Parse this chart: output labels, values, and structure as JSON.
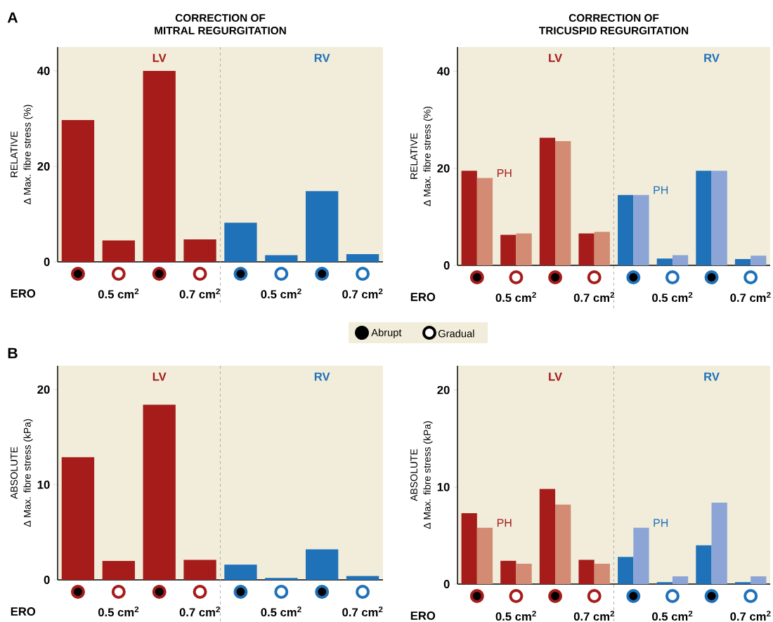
{
  "chart_data": [
    {
      "type": "bar",
      "title": "CORRECTION OF MITRAL REGURGITATION",
      "ylabel": "Δ Max. fibre stress (%)",
      "categories": [
        null,
        null,
        null,
        null,
        null,
        null,
        null,
        null
      ],
      "series": [
        {
          "colors": [
            "#a51c1b",
            "#a51c1b",
            "#a51c1b",
            "#a51c1b",
            "#1f71b8",
            "#1f71b8",
            "#1f71b8",
            "#1f71b8"
          ],
          "values": [
            29.7,
            4.5,
            40.0,
            4.7,
            8.2,
            1.4,
            14.8,
            1.6
          ]
        }
      ],
      "ylim": [
        0,
        45
      ],
      "yticks": [
        0,
        20,
        40
      ],
      "annotations": [
        "RELATIVE",
        "LV",
        "RV",
        "ERO",
        "0.5 cm$^{2}$",
        "0.7 cm$^{2}$",
        "0.5 cm$^{2}$",
        "0.7 cm$^{2}$",
        "A",
        "Abrupt",
        "Gradual"
      ]
    },
    {
      "type": "bar",
      "title": "CORRECTION OF TRICUSPID REGURGITATION",
      "ylabel": "Δ Max. fibre stress (%)",
      "categories": [
        null,
        null,
        null,
        null,
        null,
        null,
        null,
        null
      ],
      "series": [
        {
          "colors": [
            "#a51c1b",
            "#a51c1b",
            "#a51c1b",
            "#a51c1b",
            "#1f71b8",
            "#1f71b8",
            "#1f71b8",
            "#1f71b8"
          ],
          "values": [
            19.5,
            6.3,
            26.3,
            6.6,
            14.5,
            1.4,
            19.5,
            1.3
          ]
        },
        {
          "colors": [
            "#d38b74",
            "#d38b74",
            "#d38b74",
            "#d38b74",
            "#8ca5d6",
            "#8ca5d6",
            "#8ca5d6",
            "#8ca5d6"
          ],
          "values": [
            18.0,
            6.6,
            25.6,
            6.9,
            14.5,
            2.1,
            19.5,
            2.0
          ]
        }
      ],
      "ylim": [
        0,
        45
      ],
      "yticks": [
        0,
        20,
        40
      ],
      "annotations": [
        "RELATIVE",
        "LV",
        "RV",
        "ERO",
        "0.5 cm$^{2}$",
        "0.7 cm$^{2}$",
        "0.5 cm$^{2}$",
        "0.7 cm$^{2}$",
        "PH",
        "PH"
      ]
    },
    {
      "type": "bar",
      "ylabel": "Δ Max. fibre stress (kPa)",
      "categories": [
        null,
        null,
        null,
        null,
        null,
        null,
        null,
        null
      ],
      "series": [
        {
          "colors": [
            "#a51c1b",
            "#a51c1b",
            "#a51c1b",
            "#a51c1b",
            "#1f71b8",
            "#1f71b8",
            "#1f71b8",
            "#1f71b8"
          ],
          "values": [
            12.9,
            2.0,
            18.4,
            2.1,
            1.6,
            0.2,
            3.2,
            0.4
          ]
        }
      ],
      "ylim": [
        0,
        22.5
      ],
      "yticks": [
        0,
        10,
        20
      ],
      "annotations": [
        "ABSOLUTE",
        "LV",
        "RV",
        "ERO",
        "0.5 cm$^{2}$",
        "0.7 cm$^{2}$",
        "0.5 cm$^{2}$",
        "0.7 cm$^{2}$",
        "B"
      ]
    },
    {
      "type": "bar",
      "ylabel": "Δ Max. fibre stress (kPa)",
      "categories": [
        null,
        null,
        null,
        null,
        null,
        null,
        null,
        null
      ],
      "series": [
        {
          "colors": [
            "#a51c1b",
            "#a51c1b",
            "#a51c1b",
            "#a51c1b",
            "#1f71b8",
            "#1f71b8",
            "#1f71b8",
            "#1f71b8"
          ],
          "values": [
            7.3,
            2.4,
            9.8,
            2.5,
            2.8,
            0.2,
            4.0,
            0.2
          ]
        },
        {
          "colors": [
            "#d38b74",
            "#d38b74",
            "#d38b74",
            "#d38b74",
            "#8ca5d6",
            "#8ca5d6",
            "#8ca5d6",
            "#8ca5d6"
          ],
          "values": [
            5.8,
            2.1,
            8.2,
            2.1,
            5.8,
            0.8,
            8.4,
            0.8
          ]
        }
      ],
      "ylim": [
        0,
        22.5
      ],
      "yticks": [
        0,
        10,
        20
      ],
      "annotations": [
        "ABSOLUTE",
        "LV",
        "RV",
        "ERO",
        "0.5 cm$^{2}$",
        "0.7 cm$^{2}$",
        "0.5 cm$^{2}$",
        "0.7 cm$^{2}$",
        "PH",
        "PH"
      ]
    }
  ]
}
